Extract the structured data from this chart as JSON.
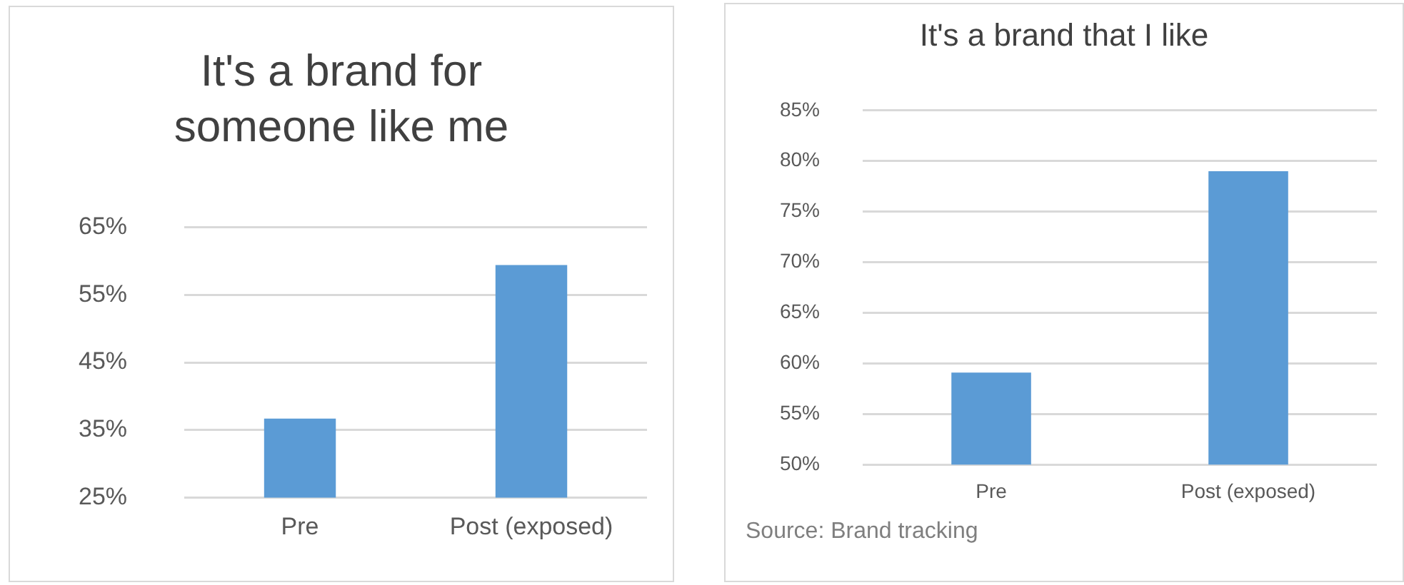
{
  "chart_data": [
    {
      "type": "bar",
      "title": "It's a brand for someone like me",
      "categories": [
        "Pre",
        "Post (exposed)"
      ],
      "values": [
        36.7,
        59.4
      ],
      "color": "#5b9bd5",
      "ylim": [
        25,
        65
      ],
      "yticks": [
        {
          "value": 25,
          "label": "25%"
        },
        {
          "value": 35,
          "label": "35%"
        },
        {
          "value": 45,
          "label": "45%"
        },
        {
          "value": 55,
          "label": "55%"
        },
        {
          "value": 65,
          "label": "65%"
        }
      ],
      "grid": "y",
      "legend": false
    },
    {
      "type": "bar",
      "title": "It's a brand that I like",
      "categories": [
        "Pre",
        "Post (exposed)"
      ],
      "values": [
        59.1,
        79.0
      ],
      "color": "#5b9bd5",
      "ylim": [
        50,
        85
      ],
      "yticks": [
        {
          "value": 50,
          "label": "50%"
        },
        {
          "value": 55,
          "label": "55%"
        },
        {
          "value": 60,
          "label": "60%"
        },
        {
          "value": 65,
          "label": "65%"
        },
        {
          "value": 70,
          "label": "70%"
        },
        {
          "value": 75,
          "label": "75%"
        },
        {
          "value": 80,
          "label": "80%"
        },
        {
          "value": 85,
          "label": "85%"
        }
      ],
      "grid": "y",
      "legend": false,
      "annotations": [
        "Source: Brand tracking"
      ]
    }
  ]
}
